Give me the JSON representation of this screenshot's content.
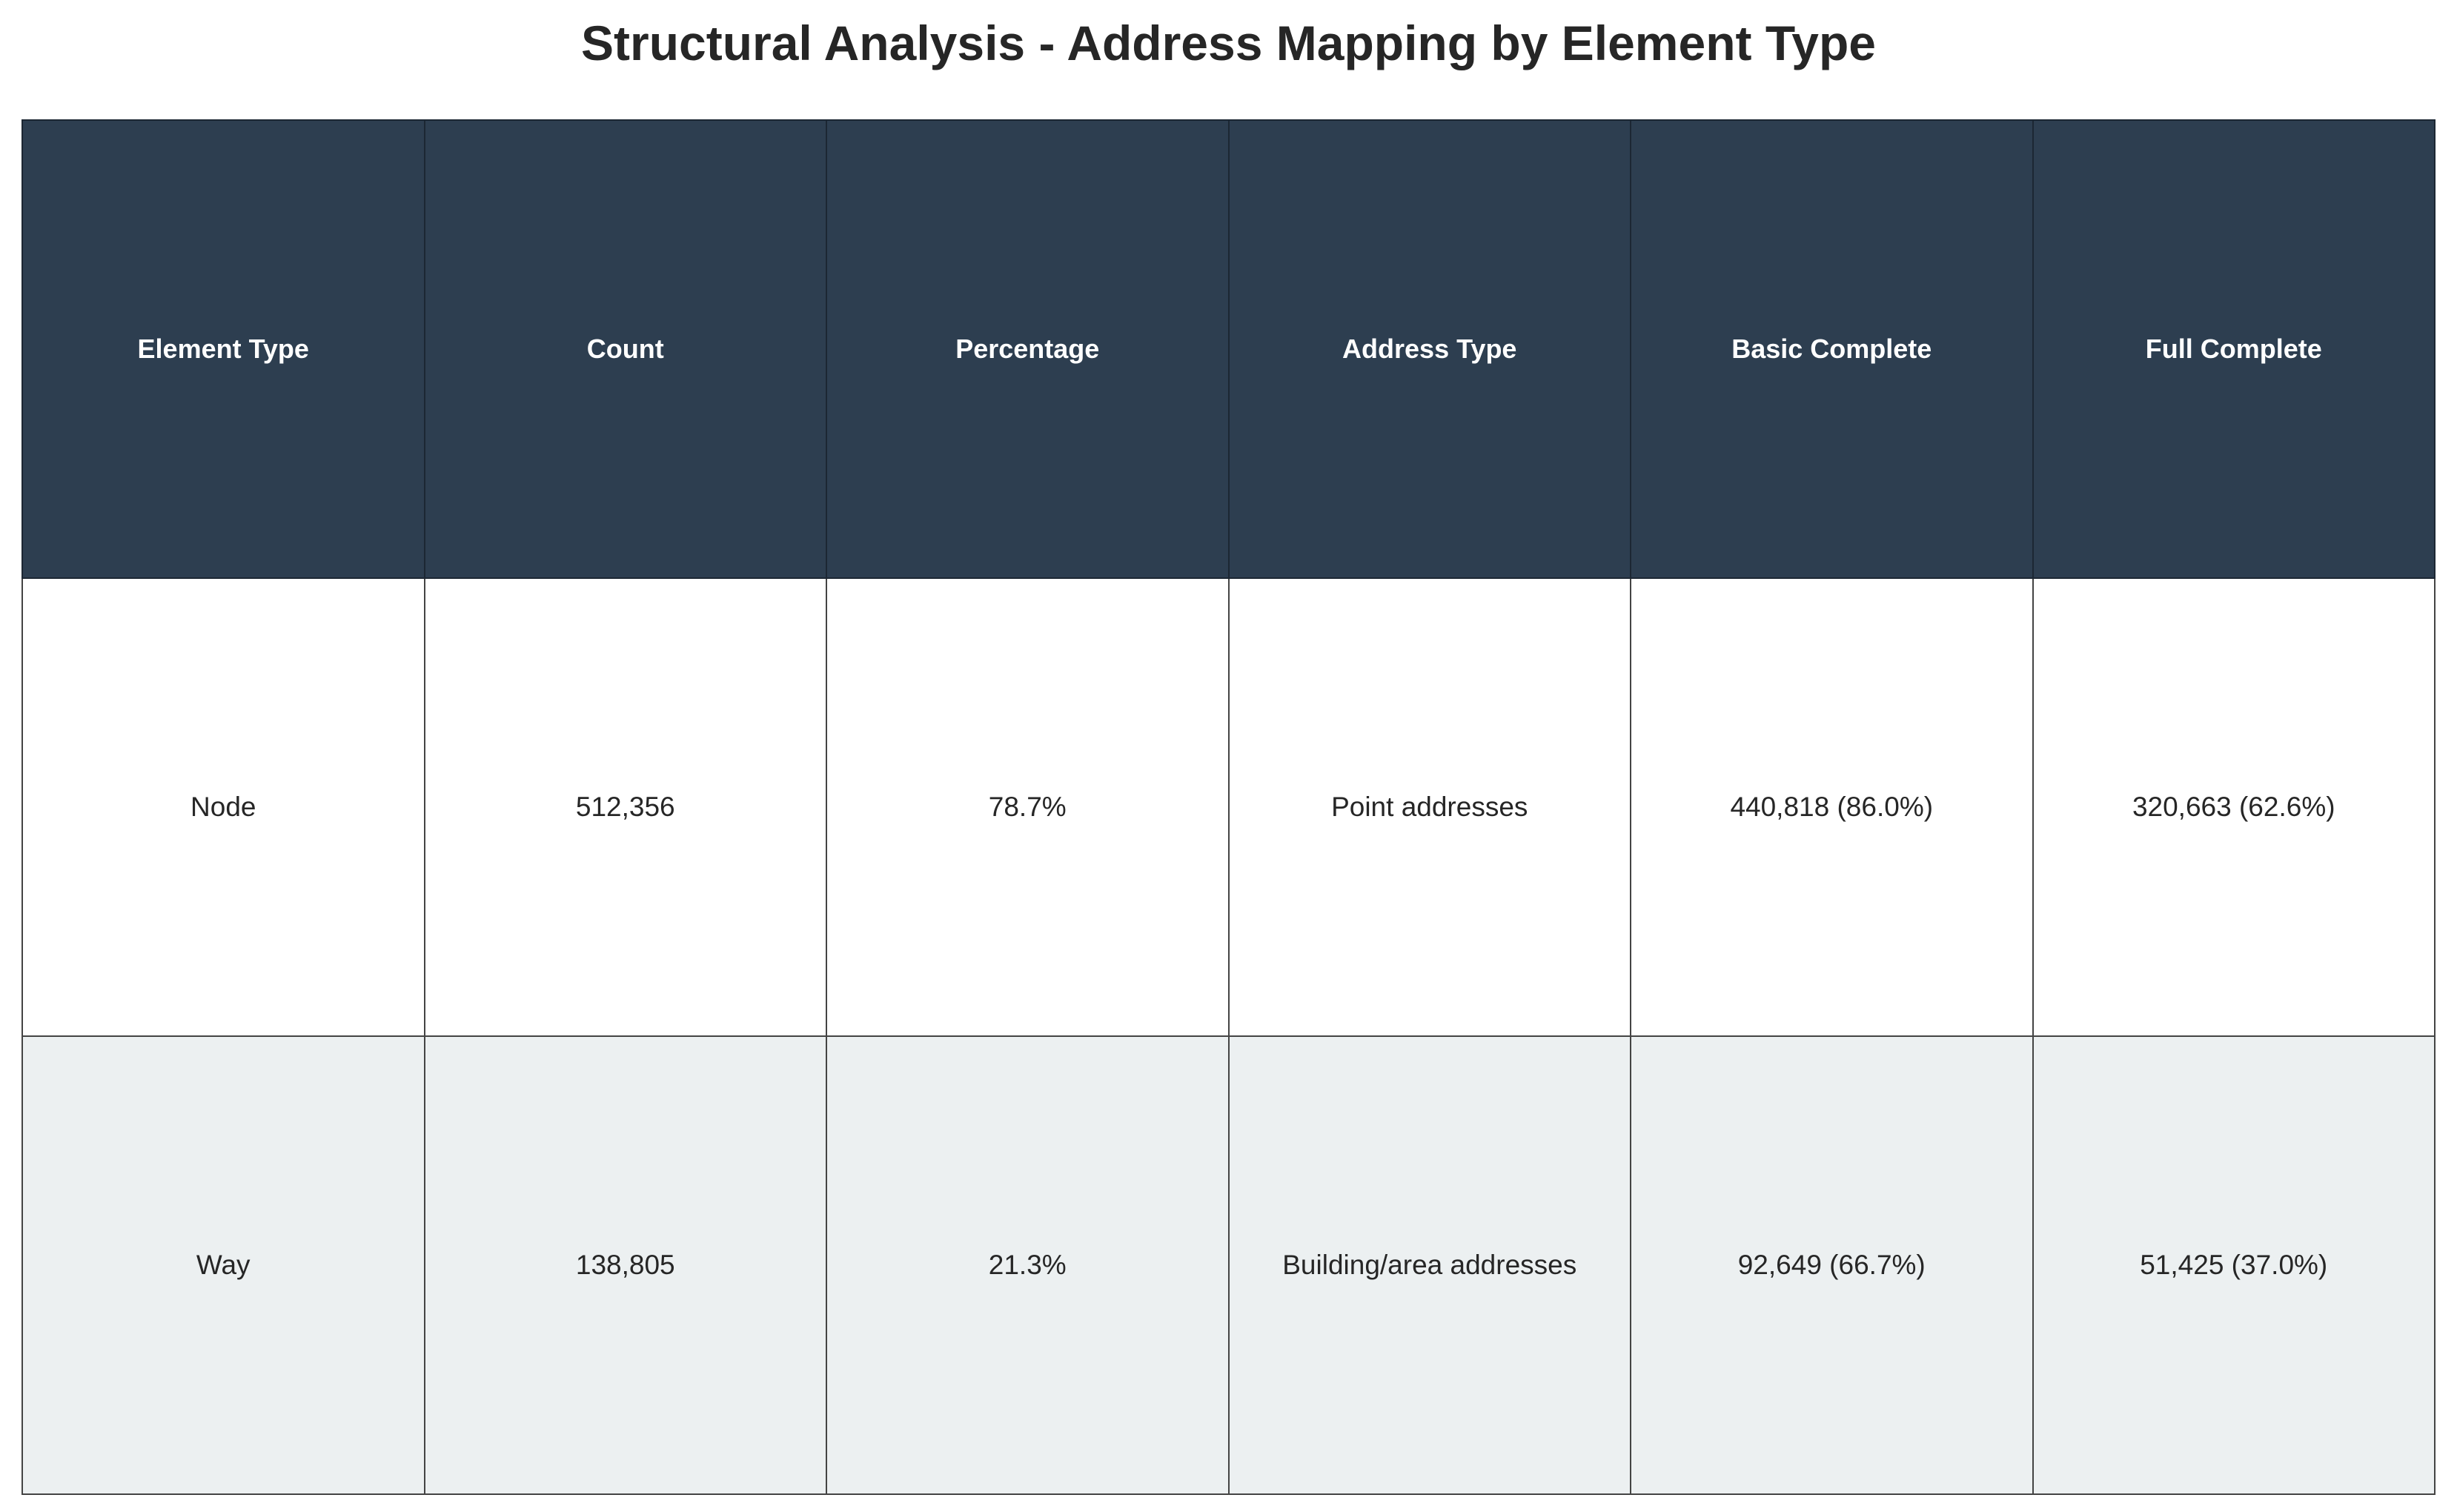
{
  "chart_data": {
    "type": "table",
    "title": "Structural Analysis - Address Mapping by Element Type",
    "columns": [
      "Element Type",
      "Count",
      "Percentage",
      "Address Type",
      "Basic Complete",
      "Full Complete"
    ],
    "rows": [
      [
        "Node",
        "512,356",
        "78.7%",
        "Point addresses",
        "440,818 (86.0%)",
        "320,663 (62.6%)"
      ],
      [
        "Way",
        "138,805",
        "21.3%",
        "Building/area addresses",
        "92,649 (66.7%)",
        "51,425 (37.0%)"
      ]
    ],
    "colors": {
      "header_bg": "#2d3e50",
      "header_text": "#ffffff",
      "row_alt_bg": "#ecf0f1",
      "row_bg": "#ffffff"
    }
  }
}
